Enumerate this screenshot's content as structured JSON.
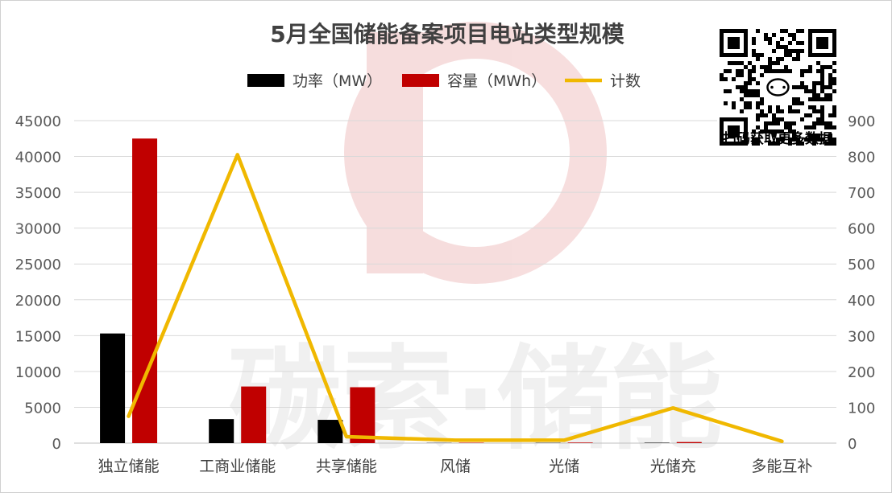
{
  "chart_data": {
    "type": "bar",
    "title": "5月全国储能备案项目电站类型规模",
    "categories": [
      "独立储能",
      "工商业储能",
      "共享储能",
      "风储",
      "光储",
      "光储充",
      "多能互补"
    ],
    "series": [
      {
        "name": "功率（MW）",
        "kind": "bar",
        "axis": "left",
        "color": "#000000",
        "values": [
          15300,
          3350,
          3250,
          30,
          40,
          60,
          0
        ]
      },
      {
        "name": "容量（MWh）",
        "kind": "bar",
        "axis": "left",
        "color": "#c00000",
        "values": [
          42500,
          7900,
          7800,
          60,
          80,
          150,
          0
        ]
      },
      {
        "name": "计数",
        "kind": "line",
        "axis": "right",
        "color": "#f0b800",
        "values": [
          75,
          805,
          18,
          8,
          8,
          98,
          5
        ]
      }
    ],
    "y_left": {
      "min": 0,
      "max": 45000,
      "ticks": [
        0,
        5000,
        10000,
        15000,
        20000,
        25000,
        30000,
        35000,
        40000,
        45000
      ]
    },
    "y_right": {
      "min": 0,
      "max": 900,
      "ticks": [
        0,
        100,
        200,
        300,
        400,
        500,
        600,
        700,
        800,
        900
      ]
    },
    "grid": true,
    "legend": "top-center"
  },
  "qr": {
    "caption": "扫码获取更多数据"
  },
  "watermark": {
    "text": "碳索·储能"
  }
}
